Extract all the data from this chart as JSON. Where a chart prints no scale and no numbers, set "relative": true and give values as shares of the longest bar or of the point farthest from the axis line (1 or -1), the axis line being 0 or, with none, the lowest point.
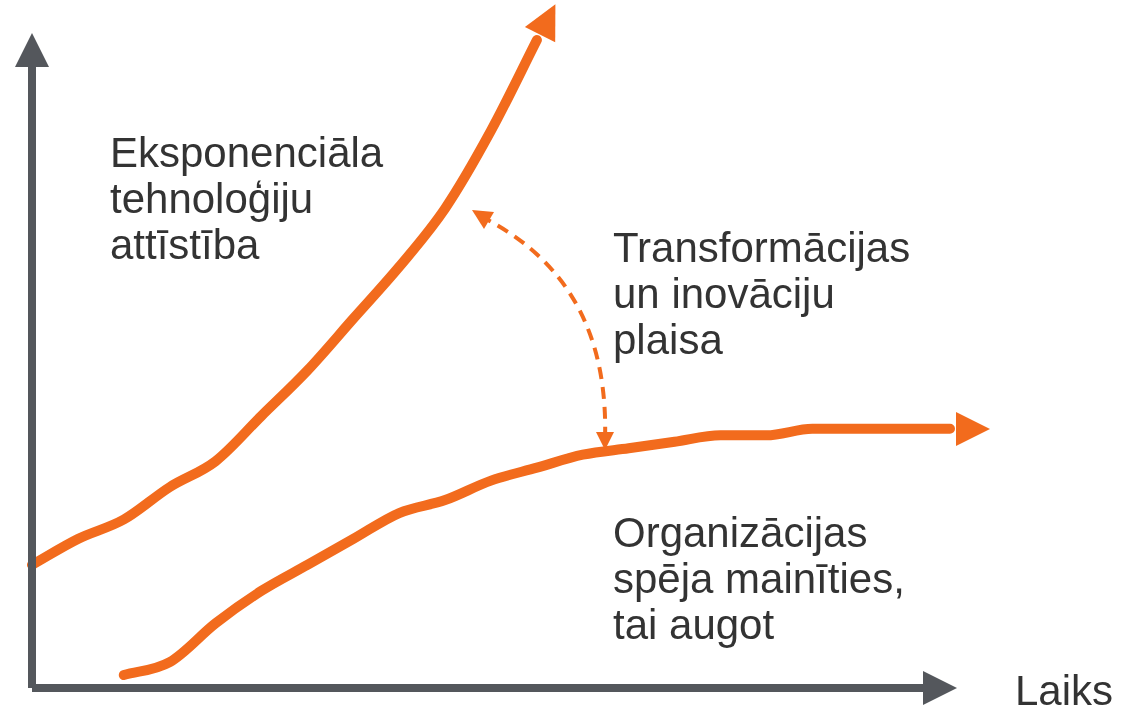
{
  "chart_data": {
    "type": "line",
    "relative": true,
    "xlabel": "Laiks",
    "categories": [
      null,
      null,
      null,
      null,
      null,
      null,
      null,
      null,
      null,
      null,
      null,
      null,
      null,
      null,
      null,
      null,
      null,
      null,
      null,
      null,
      null
    ],
    "series": [
      {
        "name": "Eksponenciāla tehnoloģiju attīstība",
        "color": "#f26b1d",
        "values": [
          0.19,
          0.23,
          0.26,
          0.31,
          0.35,
          0.42,
          0.49,
          0.57,
          0.65,
          0.74,
          0.86,
          1,
          null,
          null,
          null,
          null,
          null,
          null,
          null,
          null,
          null
        ]
      },
      {
        "name": "Organizācijas spēja mainīties, tai augot",
        "color": "#f26b1d",
        "values": [
          null,
          null,
          0.02,
          0.04,
          0.1,
          0.15,
          0.19,
          0.23,
          0.27,
          0.29,
          0.32,
          0.34,
          0.36,
          0.37,
          0.38,
          0.39,
          0.39,
          0.4,
          0.4,
          0.4,
          0.4
        ]
      }
    ],
    "annotations": [
      "Transformācijas un inovāciju plaisa"
    ],
    "marker": "none",
    "line_style": "solid"
  }
}
